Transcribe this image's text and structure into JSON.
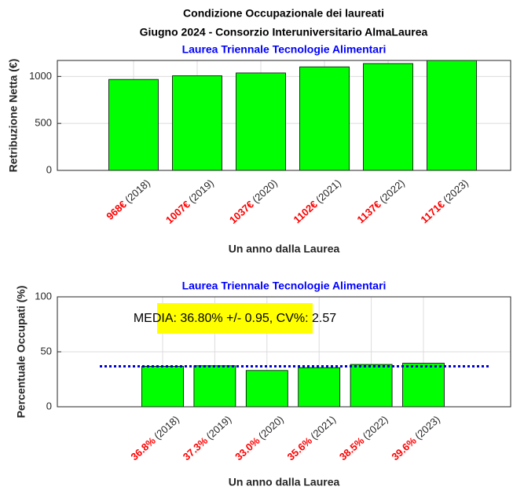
{
  "chart_data": [
    {
      "type": "bar",
      "title": [
        "Condizione Occupazionale dei laureati",
        "Giugno 2024 - Consorzio Interuniversitario AlmaLaurea"
      ],
      "subtitle": "Laurea Triennale Tecnologie Alimentari",
      "xlabel": "Un anno dalla Laurea",
      "ylabel": "Retribuzione Netta (€)",
      "categories": [
        "(2018)",
        "(2019)",
        "(2020)",
        "(2021)",
        "(2022)",
        "(2023)"
      ],
      "values": [
        968,
        1007,
        1037,
        1102,
        1137,
        1171
      ],
      "value_labels": [
        "968€",
        "1007€",
        "1037€",
        "1102€",
        "1137€",
        "1171€"
      ],
      "color": "#00ff00",
      "label_color": "#ff0000",
      "ylim": [
        0,
        1170
      ],
      "yticks": [
        0,
        500,
        1000
      ],
      "grid": true
    },
    {
      "type": "bar",
      "subtitle": "Laurea Triennale Tecnologie Alimentari",
      "xlabel": "Un anno dalla Laurea",
      "ylabel": "Percentuale Occupati (%)",
      "annotation": "MEDIA: 36.80% +/- 0.95, CV%: 2.57",
      "mean": 36.8,
      "mean_color": "#0000cc",
      "categories": [
        "(2018)",
        "(2019)",
        "(2020)",
        "(2021)",
        "(2022)",
        "(2023)"
      ],
      "values": [
        36.8,
        37.3,
        33.0,
        35.6,
        38.5,
        39.6
      ],
      "value_labels": [
        "36.8%",
        "37.3%",
        "33.0%",
        "35.6%",
        "38.5%",
        "39.6%"
      ],
      "color": "#00ff00",
      "label_color": "#ff0000",
      "ylim": [
        0,
        100
      ],
      "yticks": [
        0,
        50,
        100
      ],
      "grid": true
    }
  ]
}
